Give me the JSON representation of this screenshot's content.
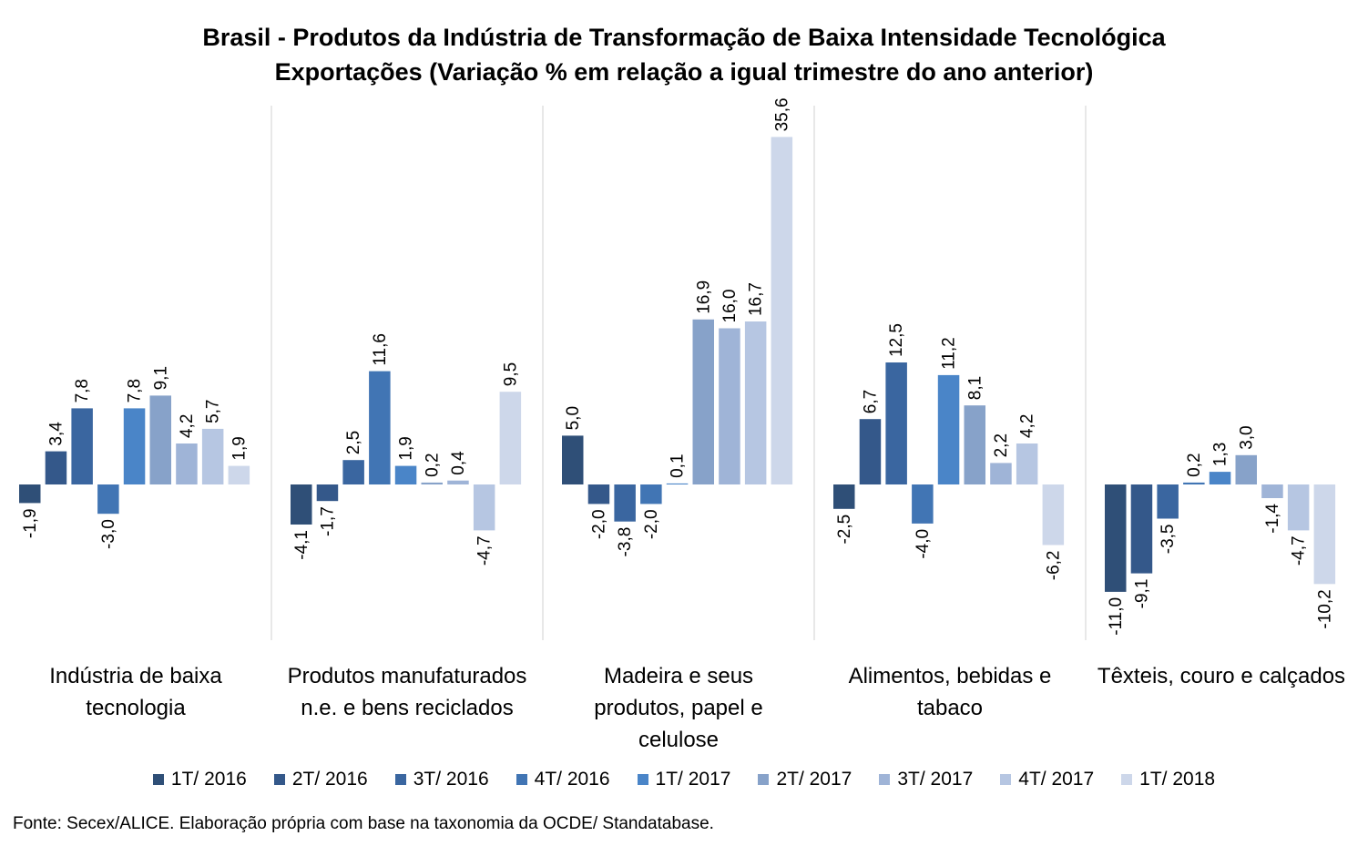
{
  "title_line1": "Brasil - Produtos da Indústria de Transformação de Baixa Intensidade Tecnológica",
  "title_line2": "Exportações (Variação % em relação a igual trimestre do ano anterior)",
  "source": "Fonte: Secex/ALICE. Elaboração própria com base na taxonomia da OCDE/ Standatabase.",
  "colors": [
    "#2f4f77",
    "#34588a",
    "#3a66a0",
    "#4175b4",
    "#4a85c8",
    "#87a2c9",
    "#9fb4d7",
    "#b6c6e2",
    "#cdd7ea"
  ],
  "chart_data": {
    "type": "bar",
    "categories": [
      [
        "Indústria de baixa",
        "tecnologia"
      ],
      [
        "Produtos manufaturados",
        "n.e. e bens reciclados"
      ],
      [
        "Madeira e seus",
        "produtos, papel e",
        "celulose"
      ],
      [
        "Alimentos, bebidas e",
        "tabaco"
      ],
      [
        "Têxteis, couro e calçados"
      ]
    ],
    "series": [
      {
        "name": "1T/ 2016",
        "values": [
          -1.9,
          -4.1,
          5.0,
          -2.5,
          -11.0
        ],
        "labels": [
          "-1,9",
          "-4,1",
          "5,0",
          "-2,5",
          "-11,0"
        ]
      },
      {
        "name": "2T/ 2016",
        "values": [
          3.4,
          -1.7,
          -2.0,
          6.7,
          -9.1
        ],
        "labels": [
          "3,4",
          "-1,7",
          "-2,0",
          "6,7",
          "-9,1"
        ]
      },
      {
        "name": "3T/ 2016",
        "values": [
          7.8,
          2.5,
          -3.8,
          12.5,
          -3.5
        ],
        "labels": [
          "7,8",
          "2,5",
          "-3,8",
          "12,5",
          "-3,5"
        ]
      },
      {
        "name": "4T/ 2016",
        "values": [
          -3.0,
          11.6,
          -2.0,
          -4.0,
          0.2
        ],
        "labels": [
          "-3,0",
          "11,6",
          "-2,0",
          "-4,0",
          "0,2"
        ]
      },
      {
        "name": "1T/ 2017",
        "values": [
          7.8,
          1.9,
          0.1,
          11.2,
          1.3
        ],
        "labels": [
          "7,8",
          "1,9",
          "0,1",
          "11,2",
          "1,3"
        ]
      },
      {
        "name": "2T/ 2017",
        "values": [
          9.1,
          0.2,
          16.9,
          8.1,
          3.0
        ],
        "labels": [
          "9,1",
          "0,2",
          "16,9",
          "8,1",
          "3,0"
        ]
      },
      {
        "name": "3T/ 2017",
        "values": [
          4.2,
          0.4,
          16.0,
          2.2,
          -1.4
        ],
        "labels": [
          "4,2",
          "0,4",
          "16,0",
          "2,2",
          "-1,4"
        ]
      },
      {
        "name": "4T/ 2017",
        "values": [
          5.7,
          -4.7,
          16.7,
          4.2,
          -4.7
        ],
        "labels": [
          "5,7",
          "-4,7",
          "16,7",
          "4,2",
          "-4,7"
        ]
      },
      {
        "name": "1T/ 2018",
        "values": [
          1.9,
          9.5,
          35.6,
          -6.2,
          -10.2
        ],
        "labels": [
          "1,9",
          "9,5",
          "35,6",
          "-6,2",
          "-10,2"
        ]
      }
    ],
    "legend_position": "bottom",
    "grid": false
  }
}
